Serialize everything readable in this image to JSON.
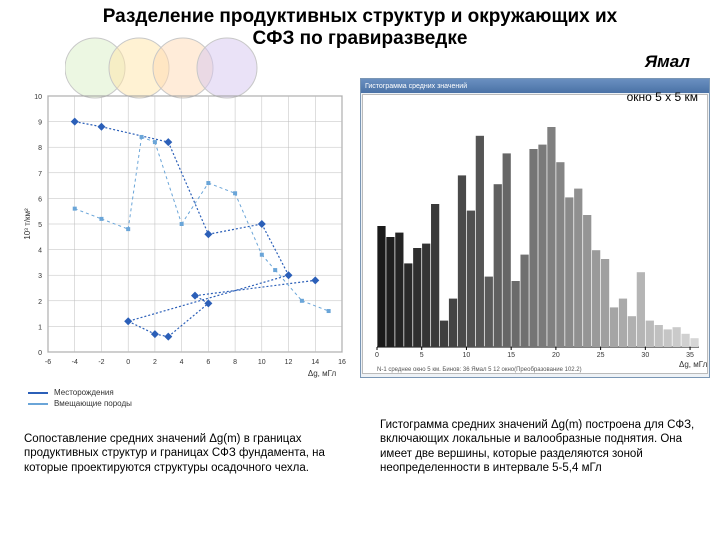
{
  "title_line1": "Разделение продуктивных структур и окружающих их",
  "title_line2": "СФЗ по гравиразведке",
  "title_fontsize": 19,
  "subtitle": "Ямал",
  "subtitle_fontsize": 17,
  "window_label": "окно 5 х 5 км",
  "window_label_fontsize": 12,
  "deco_circles": {
    "colors": [
      "#d9f0c5",
      "#ffe6a8",
      "#ffd9b3",
      "#d6c5f0"
    ],
    "radius": 30,
    "spacing": 44,
    "stroke": "#c8c8c8"
  },
  "scatter_chart": {
    "type": "scatter-line",
    "background_color": "#ffffff",
    "grid_color": "#bdbdbd",
    "axis_color": "#808080",
    "xlim": [
      -6,
      16
    ],
    "ylim": [
      0,
      10
    ],
    "xtick_step": 2,
    "ytick_step": 1,
    "xlabel": "Δg, мГл",
    "ylabel": "10³ т/км²",
    "label_fontsize": 8,
    "tick_fontsize": 7,
    "series": [
      {
        "name": "Месторождения",
        "color": "#2b5fb8",
        "line_width": 1.2,
        "marker": "diamond",
        "marker_size": 4,
        "dash": "2,2",
        "points": [
          [
            -4,
            9
          ],
          [
            -2,
            8.8
          ],
          [
            3,
            8.2
          ],
          [
            6,
            4.6
          ],
          [
            10,
            5
          ],
          [
            12,
            3
          ],
          [
            0,
            1.2
          ],
          [
            2,
            0.7
          ],
          [
            3,
            0.6
          ],
          [
            6,
            1.9
          ],
          [
            5,
            2.2
          ],
          [
            14,
            2.8
          ]
        ]
      },
      {
        "name": "Вмещающие породы",
        "color": "#6aa5d8",
        "line_width": 1,
        "marker": "square",
        "marker_size": 4,
        "dash": "3,3",
        "points": [
          [
            -4,
            5.6
          ],
          [
            -2,
            5.2
          ],
          [
            0,
            4.8
          ],
          [
            1,
            8.4
          ],
          [
            2,
            8.2
          ],
          [
            4,
            5.0
          ],
          [
            6,
            6.6
          ],
          [
            8,
            6.2
          ],
          [
            10,
            3.8
          ],
          [
            11,
            3.2
          ],
          [
            13,
            2.0
          ],
          [
            15,
            1.6
          ]
        ]
      }
    ],
    "legend": [
      {
        "label": "Месторождения",
        "color": "#2b5fb8"
      },
      {
        "label": "Вмещающие породы",
        "color": "#6aa5d8"
      }
    ]
  },
  "histogram": {
    "type": "bar",
    "background_color": "#ffffff",
    "window_titlebar": "Гистограмма средних значений",
    "axis_color": "#000000",
    "grid_color": "#e0e0e0",
    "xlabel": "Δg, мГл",
    "label_fontsize": 8,
    "bar_width": 0.92,
    "bins": [
      {
        "x": 0,
        "h": 0.55,
        "c": "#1a1a1a"
      },
      {
        "x": 1,
        "h": 0.5,
        "c": "#1f1f1f"
      },
      {
        "x": 2,
        "h": 0.52,
        "c": "#242424"
      },
      {
        "x": 3,
        "h": 0.38,
        "c": "#2a2a2a"
      },
      {
        "x": 4,
        "h": 0.45,
        "c": "#2f2f2f"
      },
      {
        "x": 5,
        "h": 0.47,
        "c": "#343434"
      },
      {
        "x": 6,
        "h": 0.65,
        "c": "#3a3a3a"
      },
      {
        "x": 7,
        "h": 0.12,
        "c": "#3f3f3f"
      },
      {
        "x": 8,
        "h": 0.22,
        "c": "#444444"
      },
      {
        "x": 9,
        "h": 0.78,
        "c": "#4a4a4a"
      },
      {
        "x": 10,
        "h": 0.62,
        "c": "#505050"
      },
      {
        "x": 11,
        "h": 0.96,
        "c": "#555555"
      },
      {
        "x": 12,
        "h": 0.32,
        "c": "#5b5b5b"
      },
      {
        "x": 13,
        "h": 0.74,
        "c": "#606060"
      },
      {
        "x": 14,
        "h": 0.88,
        "c": "#666666"
      },
      {
        "x": 15,
        "h": 0.3,
        "c": "#6b6b6b"
      },
      {
        "x": 16,
        "h": 0.42,
        "c": "#707070"
      },
      {
        "x": 17,
        "h": 0.9,
        "c": "#757575"
      },
      {
        "x": 18,
        "h": 0.92,
        "c": "#7a7a7a"
      },
      {
        "x": 19,
        "h": 1.0,
        "c": "#808080"
      },
      {
        "x": 20,
        "h": 0.84,
        "c": "#858585"
      },
      {
        "x": 21,
        "h": 0.68,
        "c": "#8a8a8a"
      },
      {
        "x": 22,
        "h": 0.72,
        "c": "#909090"
      },
      {
        "x": 23,
        "h": 0.6,
        "c": "#959595"
      },
      {
        "x": 24,
        "h": 0.44,
        "c": "#9a9a9a"
      },
      {
        "x": 25,
        "h": 0.4,
        "c": "#a0a0a0"
      },
      {
        "x": 26,
        "h": 0.18,
        "c": "#a5a5a5"
      },
      {
        "x": 27,
        "h": 0.22,
        "c": "#aaaaaa"
      },
      {
        "x": 28,
        "h": 0.14,
        "c": "#b0b0b0"
      },
      {
        "x": 29,
        "h": 0.34,
        "c": "#b5b5b5"
      },
      {
        "x": 30,
        "h": 0.12,
        "c": "#bababa"
      },
      {
        "x": 31,
        "h": 0.1,
        "c": "#c0c0c0"
      },
      {
        "x": 32,
        "h": 0.08,
        "c": "#c5c5c5"
      },
      {
        "x": 33,
        "h": 0.09,
        "c": "#cacaca"
      },
      {
        "x": 34,
        "h": 0.06,
        "c": "#d0d0d0"
      },
      {
        "x": 35,
        "h": 0.04,
        "c": "#d6d6d6"
      }
    ],
    "footer_text": "N-1 среднее окно 5 км. Бинов: 36   Ямал 5 12 окно(Преобразование 102.2)"
  },
  "caption_left": "Сопоставление средних значений Δg(m) в границах продуктивных структур и границах СФЗ фундамента, на которые проектируются структуры осадочного чехла.",
  "caption_right": "Гистограмма средних значений Δg(m) построена для СФЗ, включающих локальные и валообразные поднятия. Она имеет две вершины, которые разделяются зоной неопределенности в интервале 5-5,4 мГл"
}
